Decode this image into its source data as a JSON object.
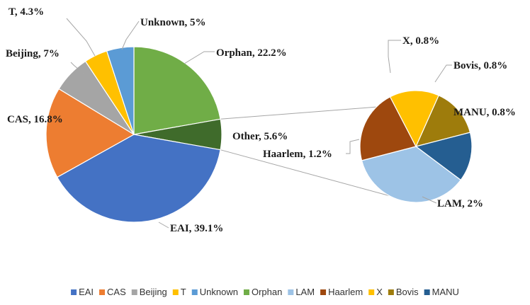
{
  "chart_data": {
    "type": "pie",
    "subtype": "pie-of-pie",
    "title": "",
    "main_pie": {
      "slices": [
        {
          "name": "Orphan",
          "value": 22.2,
          "label": "Orphan, 22.2%",
          "color": "#70ad47"
        },
        {
          "name": "Other",
          "value": 5.6,
          "label": "Other, 5.6%",
          "color": "#3f6b2b"
        },
        {
          "name": "EAI",
          "value": 39.1,
          "label": "EAI, 39.1%",
          "color": "#4472c4"
        },
        {
          "name": "CAS",
          "value": 16.8,
          "label": "CAS, 16.8%",
          "color": "#ed7d31"
        },
        {
          "name": "Beijing",
          "value": 7,
          "label": "Beijing, 7%",
          "color": "#a5a5a5"
        },
        {
          "name": "T",
          "value": 4.3,
          "label": "T, 4.3%",
          "color": "#ffc000"
        },
        {
          "name": "Unknown",
          "value": 5,
          "label": "Unknown, 5%",
          "color": "#5b9bd5"
        }
      ]
    },
    "secondary_pie": {
      "slices": [
        {
          "name": "Bovis",
          "value": 0.8,
          "label": "Bovis, 0.8%",
          "color": "#9e7c0c"
        },
        {
          "name": "MANU",
          "value": 0.8,
          "label": "MANU, 0.8%",
          "color": "#255e91"
        },
        {
          "name": "LAM",
          "value": 2,
          "label": "LAM, 2%",
          "color": "#9dc3e6"
        },
        {
          "name": "Haarlem",
          "value": 1.2,
          "label": "Haarlem, 1.2%",
          "color": "#9e480e"
        },
        {
          "name": "X",
          "value": 0.8,
          "label": "X, 0.8%",
          "color": "#ffc000"
        }
      ]
    },
    "legend": {
      "placement": "bottom",
      "entries": [
        {
          "name": "EAI",
          "color": "#4472c4"
        },
        {
          "name": "CAS",
          "color": "#ed7d31"
        },
        {
          "name": "Beijing",
          "color": "#a5a5a5"
        },
        {
          "name": "T",
          "color": "#ffc000"
        },
        {
          "name": "Unknown",
          "color": "#5b9bd5"
        },
        {
          "name": "Orphan",
          "color": "#70ad47"
        },
        {
          "name": "LAM",
          "color": "#9dc3e6"
        },
        {
          "name": "Haarlem",
          "color": "#9e480e"
        },
        {
          "name": "X",
          "color": "#ffc000"
        },
        {
          "name": "Bovis",
          "color": "#9e7c0c"
        },
        {
          "name": "MANU",
          "color": "#255e91"
        }
      ]
    }
  }
}
